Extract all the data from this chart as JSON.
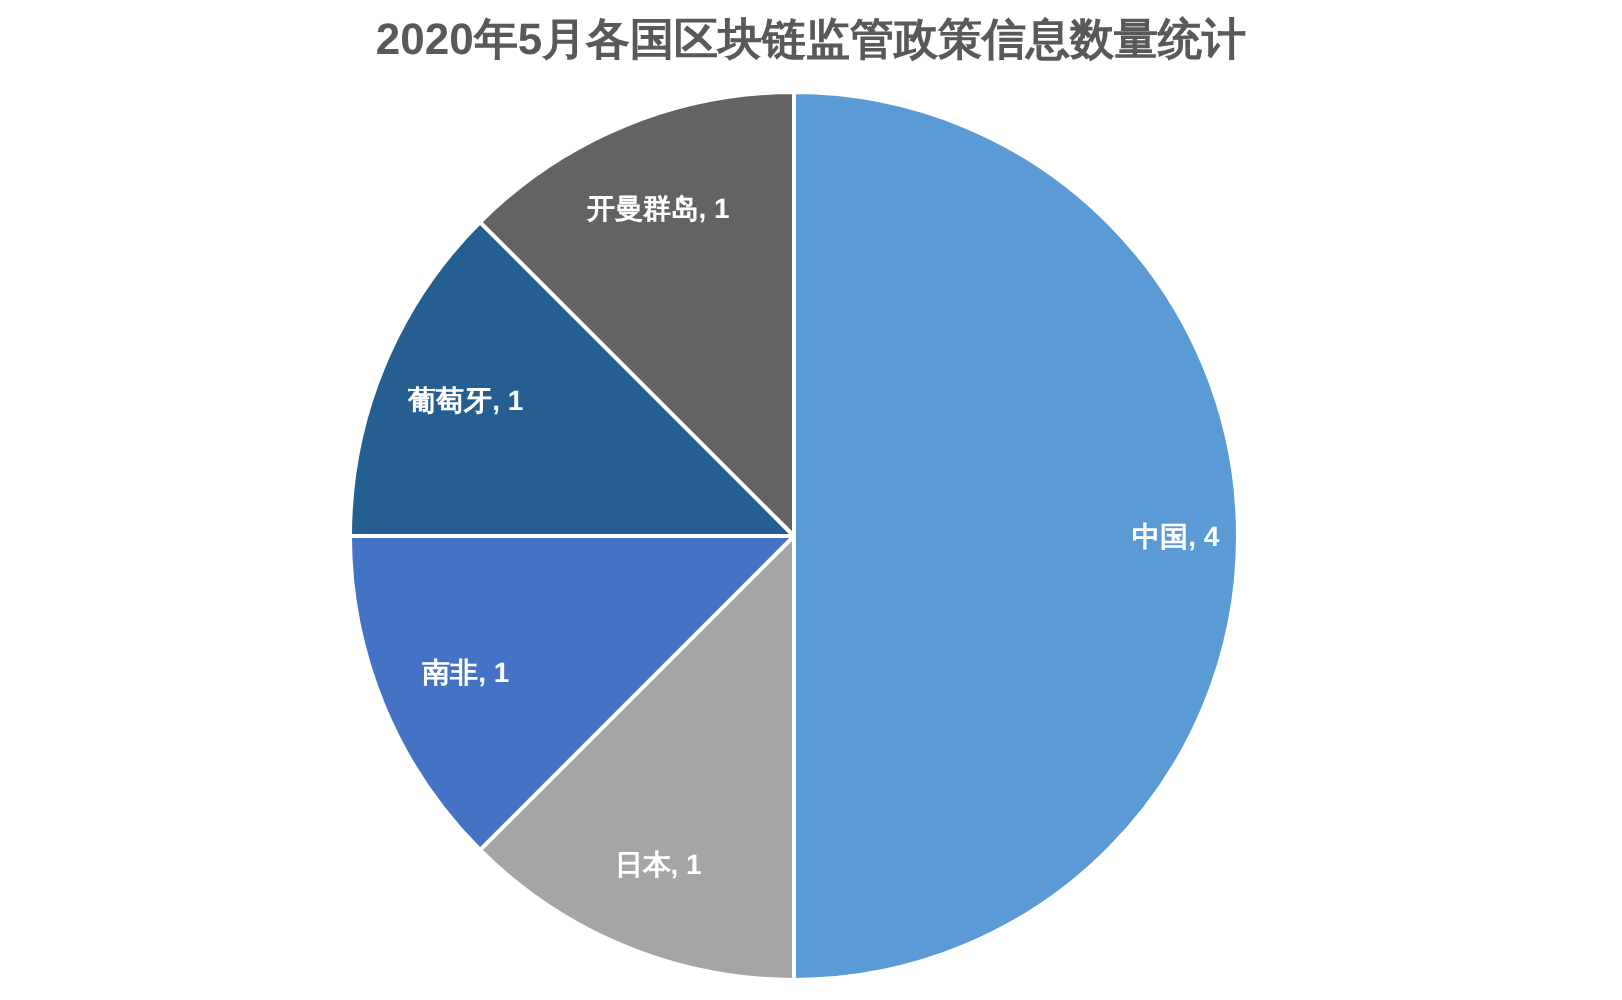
{
  "chart_data": {
    "type": "pie",
    "title": "2020年5月各国区块链监管政策信息数量统计",
    "categories": [
      "中国",
      "日本",
      "南非",
      "葡萄牙",
      "开曼群岛"
    ],
    "values": [
      4,
      1,
      1,
      1,
      1
    ],
    "value_labels": [
      ", 4",
      ", 1",
      ", 1",
      ", 1",
      ", 1"
    ],
    "colors": [
      "#5b9bd5",
      "#a5a5a5",
      "#4472c4",
      "#255e91",
      "#636363"
    ]
  }
}
